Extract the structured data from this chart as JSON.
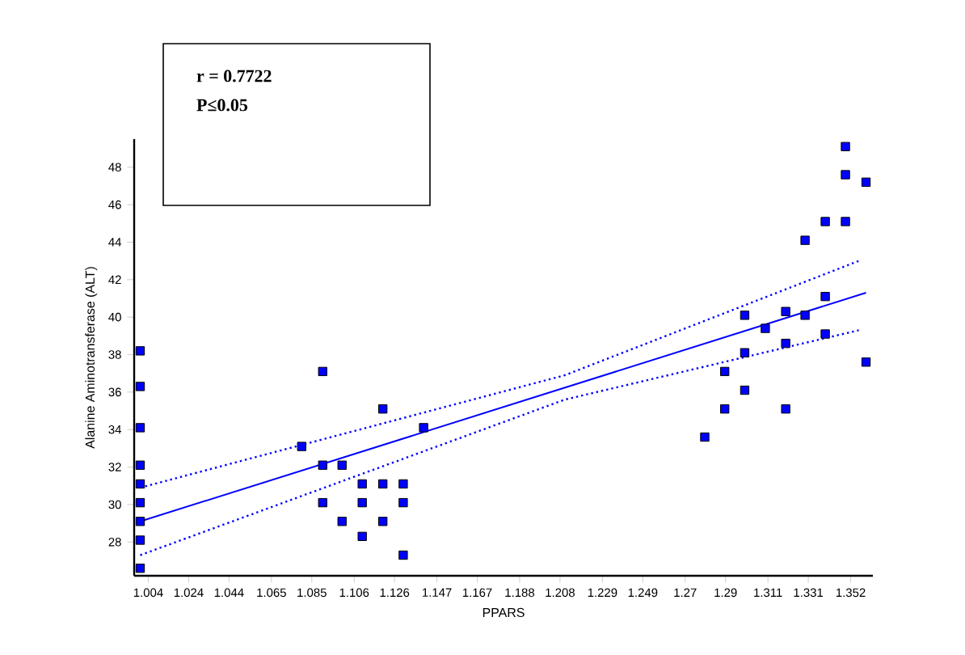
{
  "chart_data": {
    "type": "scatter",
    "xlabel": "PPARS",
    "ylabel": "Alanine Aminotransferase (ALT)",
    "annotations": [
      "r = 0.7722",
      "P≤0.05"
    ],
    "xlim": [
      0.997,
      1.363
    ],
    "ylim": [
      26.2,
      49.5
    ],
    "xticks": [
      1.004,
      1.024,
      1.044,
      1.065,
      1.085,
      1.106,
      1.126,
      1.147,
      1.167,
      1.188,
      1.208,
      1.229,
      1.249,
      1.27,
      1.29,
      1.311,
      1.331,
      1.352
    ],
    "yticks": [
      28,
      30,
      32,
      34,
      36,
      38,
      40,
      42,
      44,
      46,
      48
    ],
    "series": [
      {
        "color": "#0000ff",
        "marker": "square",
        "x": [
          1.0,
          1.0,
          1.0,
          1.0,
          1.0,
          1.0,
          1.0,
          1.0,
          1.0,
          1.08,
          1.0904,
          1.0904,
          1.0904,
          1.1,
          1.1,
          1.11,
          1.11,
          1.11,
          1.1202,
          1.1202,
          1.1202,
          1.1303,
          1.1303,
          1.1303,
          1.1404,
          1.2797,
          1.2896,
          1.2896,
          1.2995,
          1.2995,
          1.2995,
          1.3097,
          1.3198,
          1.3198,
          1.3198,
          1.3294,
          1.3294,
          1.3394,
          1.3394,
          1.3394,
          1.3494,
          1.3494,
          1.3494,
          1.3596,
          1.3596
        ],
        "values": [
          38.2,
          36.3,
          34.1,
          32.1,
          31.1,
          30.1,
          29.1,
          28.1,
          26.6,
          33.1,
          37.1,
          32.1,
          30.1,
          32.1,
          29.1,
          31.1,
          30.1,
          28.3,
          35.1,
          31.1,
          29.1,
          31.1,
          30.1,
          27.3,
          34.1,
          33.6,
          37.1,
          35.1,
          40.1,
          38.1,
          36.1,
          39.4,
          40.3,
          38.6,
          35.1,
          44.1,
          40.1,
          45.1,
          41.1,
          39.1,
          49.1,
          47.6,
          45.1,
          47.2,
          37.6
        ]
      },
      {
        "type": "line",
        "color": "#0000ff",
        "line_style": "solid",
        "marker": "none",
        "x": [
          1.0,
          1.3596
        ],
        "values": [
          29.1,
          41.3
        ]
      },
      {
        "type": "line",
        "color": "#0000ff",
        "line_style": "dotted",
        "marker": "none",
        "x": [
          1.0,
          1.2104,
          1.356
        ],
        "values": [
          30.9,
          36.9,
          43.0
        ]
      },
      {
        "type": "line",
        "color": "#0000ff",
        "line_style": "dotted",
        "marker": "none",
        "x": [
          1.0,
          1.2104,
          1.356
        ],
        "values": [
          27.3,
          35.6,
          39.3
        ]
      }
    ]
  }
}
